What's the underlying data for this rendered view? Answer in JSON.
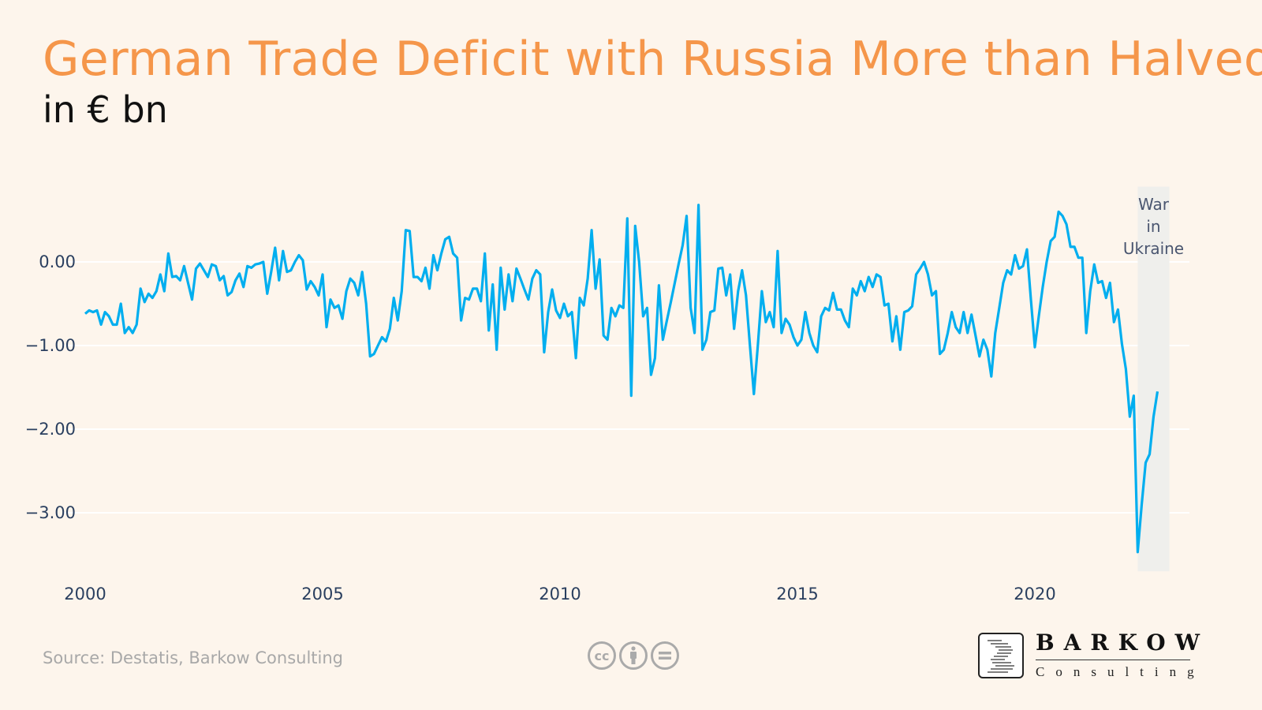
{
  "header": {
    "title": "German Trade Deficit with Russia More than Halved",
    "subtitle": "in € bn"
  },
  "footer": {
    "source": "Source: Destatis, Barkow Consulting",
    "license_icons": [
      "cc-icon",
      "by-attribution-icon",
      "no-derivatives-icon"
    ],
    "logo_name": "BARKOW",
    "logo_sub": "Consulting"
  },
  "chart_data": {
    "type": "line",
    "title": "German Trade Deficit with Russia More than Halved",
    "subtitle": "in € bn",
    "xlabel": "",
    "ylabel": "",
    "frequency": "monthly",
    "x_ticks": [
      "2000",
      "2005",
      "2010",
      "2015",
      "2020"
    ],
    "y_ticks": [
      0,
      -1,
      -2,
      -3
    ],
    "y_tick_labels": [
      "0.00",
      "−1.00",
      "−2.00",
      "−3.00"
    ],
    "ylim": [
      -3.7,
      0.9
    ],
    "xlim": [
      "2000-01",
      "2022-12"
    ],
    "grid": true,
    "line_color": "#00aeef",
    "annotation": {
      "text": [
        "War",
        "in",
        "Ukraine"
      ],
      "shaded_from": "2022-03",
      "shaded_to": "2022-11",
      "color": "#efefec"
    },
    "values_by_year": {
      "2000": [
        -0.62,
        -0.58,
        -0.6,
        -0.58,
        -0.75,
        -0.6,
        -0.65,
        -0.75,
        -0.75,
        -0.5,
        -0.85,
        -0.78
      ],
      "2001": [
        -0.85,
        -0.75,
        -0.32,
        -0.48,
        -0.38,
        -0.43,
        -0.35,
        -0.15,
        -0.35,
        0.1,
        -0.18,
        -0.17
      ],
      "2002": [
        -0.22,
        -0.05,
        -0.25,
        -0.45,
        -0.08,
        -0.02,
        -0.1,
        -0.18,
        -0.03,
        -0.05,
        -0.22,
        -0.17
      ],
      "2003": [
        -0.4,
        -0.36,
        -0.22,
        -0.14,
        -0.3,
        -0.05,
        -0.07,
        -0.03,
        -0.02,
        0.0,
        -0.38,
        -0.12
      ],
      "2004": [
        0.17,
        -0.22,
        0.13,
        -0.12,
        -0.1,
        0.0,
        0.08,
        0.02,
        -0.33,
        -0.23,
        -0.3,
        -0.4
      ],
      "2005": [
        -0.15,
        -0.78,
        -0.45,
        -0.55,
        -0.52,
        -0.68,
        -0.35,
        -0.2,
        -0.25,
        -0.4,
        -0.12,
        -0.5
      ],
      "2006": [
        -1.13,
        -1.1,
        -1.0,
        -0.9,
        -0.95,
        -0.8,
        -0.43,
        -0.7,
        -0.35,
        0.38,
        0.37,
        -0.18
      ],
      "2007": [
        -0.18,
        -0.23,
        -0.07,
        -0.32,
        0.08,
        -0.1,
        0.1,
        0.27,
        0.3,
        0.1,
        0.05,
        -0.7
      ],
      "2008": [
        -0.43,
        -0.45,
        -0.32,
        -0.32,
        -0.47,
        0.1,
        -0.82,
        -0.27,
        -1.05,
        -0.07,
        -0.57,
        -0.15
      ],
      "2009": [
        -0.47,
        -0.08,
        -0.2,
        -0.33,
        -0.45,
        -0.2,
        -0.1,
        -0.15,
        -1.08,
        -0.6,
        -0.33,
        -0.58
      ],
      "2010": [
        -0.67,
        -0.5,
        -0.65,
        -0.6,
        -1.15,
        -0.43,
        -0.52,
        -0.2,
        0.38,
        -0.32,
        0.03,
        -0.88
      ],
      "2011": [
        -0.93,
        -0.55,
        -0.65,
        -0.52,
        -0.55,
        0.52,
        -1.6,
        0.43,
        0.0,
        -0.65,
        -0.55,
        -1.35
      ],
      "2012": [
        -1.15,
        -0.28,
        -0.93,
        -0.7,
        -0.48,
        -0.25,
        -0.02,
        0.2,
        0.55,
        -0.55,
        -0.85,
        0.68
      ],
      "2013": [
        -1.05,
        -0.93,
        -0.6,
        -0.58,
        -0.08,
        -0.07,
        -0.4,
        -0.15,
        -0.8,
        -0.35,
        -0.1,
        -0.4
      ],
      "2014": [
        -1.0,
        -1.58,
        -1.0,
        -0.35,
        -0.72,
        -0.6,
        -0.78,
        0.13,
        -0.85,
        -0.68,
        -0.75,
        -0.9
      ],
      "2015": [
        -1.0,
        -0.93,
        -0.6,
        -0.85,
        -1.0,
        -1.08,
        -0.65,
        -0.55,
        -0.58,
        -0.37,
        -0.57,
        -0.57
      ],
      "2016": [
        -0.7,
        -0.78,
        -0.32,
        -0.4,
        -0.23,
        -0.35,
        -0.18,
        -0.3,
        -0.15,
        -0.18,
        -0.52,
        -0.5
      ],
      "2017": [
        -0.95,
        -0.65,
        -1.05,
        -0.6,
        -0.58,
        -0.53,
        -0.15,
        -0.08,
        0.0,
        -0.15,
        -0.4,
        -0.35
      ],
      "2018": [
        -1.1,
        -1.05,
        -0.85,
        -0.6,
        -0.78,
        -0.85,
        -0.6,
        -0.85,
        -0.63,
        -0.88,
        -1.13,
        -0.93
      ],
      "2019": [
        -1.05,
        -1.37,
        -0.85,
        -0.55,
        -0.25,
        -0.1,
        -0.15,
        0.08,
        -0.08,
        -0.05,
        0.15,
        -0.45
      ],
      "2020": [
        -1.02,
        -0.65,
        -0.3,
        0.0,
        0.25,
        0.3,
        0.6,
        0.55,
        0.45,
        0.18,
        0.18,
        0.05
      ],
      "2021": [
        0.05,
        -0.85,
        -0.35,
        -0.03,
        -0.25,
        -0.23,
        -0.43,
        -0.25,
        -0.72,
        -0.57,
        -0.98,
        -1.28
      ],
      "2022": [
        -1.85,
        -1.6,
        -3.47,
        -2.9,
        -2.4,
        -2.3,
        -1.85,
        -1.55
      ]
    }
  }
}
